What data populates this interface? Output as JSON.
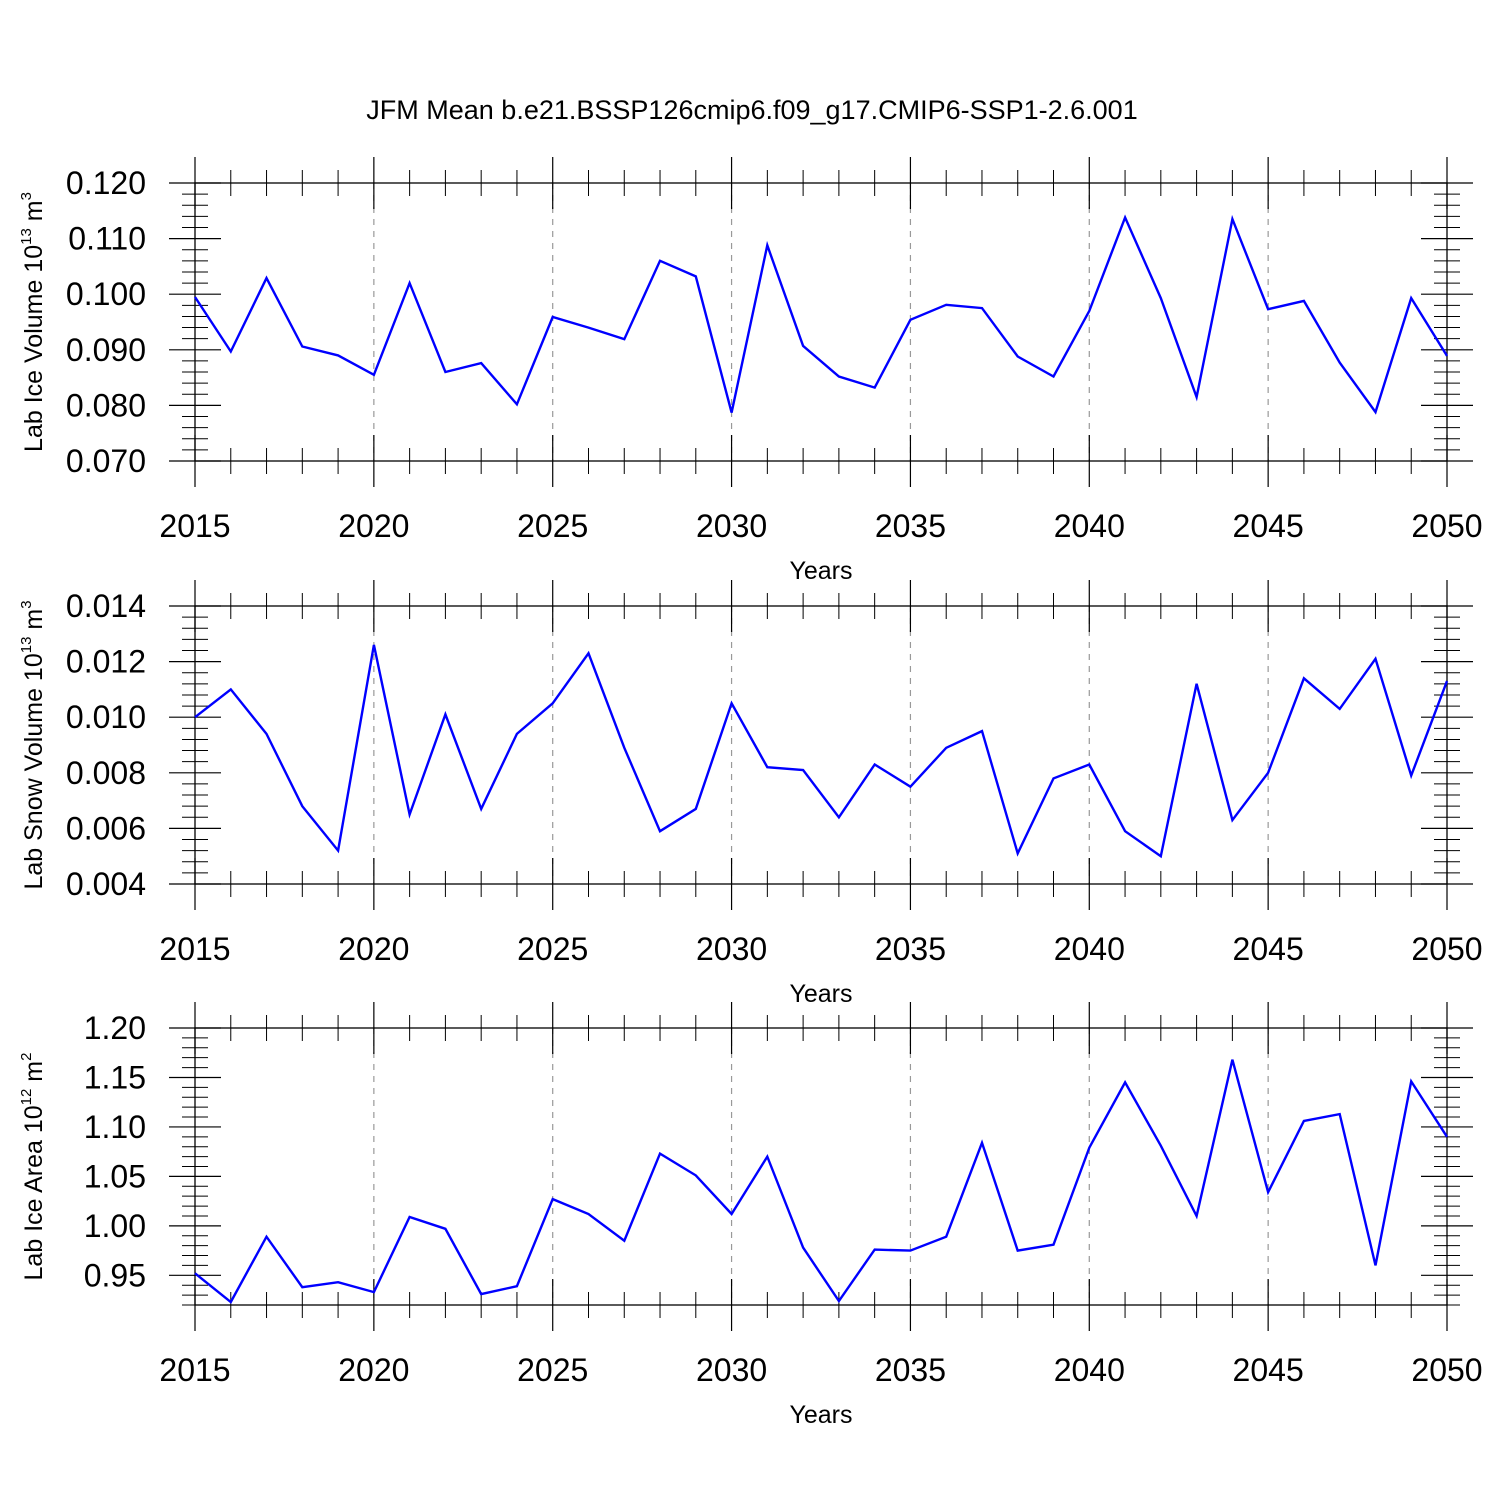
{
  "chart_data": {
    "title": "JFM Mean b.e21.BSSP126cmip6.f09_g17.CMIP6-SSP1-2.6.001",
    "type": "line",
    "line_color": "#0000ff",
    "grid_color": "#999999",
    "x": [
      2015,
      2016,
      2017,
      2018,
      2019,
      2020,
      2021,
      2022,
      2023,
      2024,
      2025,
      2026,
      2027,
      2028,
      2029,
      2030,
      2031,
      2032,
      2033,
      2034,
      2035,
      2036,
      2037,
      2038,
      2039,
      2040,
      2041,
      2042,
      2043,
      2044,
      2045,
      2046,
      2047,
      2048,
      2049,
      2050
    ],
    "xlim": [
      2015,
      2050
    ],
    "xticks": [
      2015,
      2020,
      2025,
      2030,
      2035,
      2040,
      2045,
      2050
    ],
    "xtick_labels": [
      "2015",
      "2020",
      "2025",
      "2030",
      "2035",
      "2040",
      "2045",
      "2050"
    ],
    "panels": [
      {
        "ylabel_text": "Lab Ice Volume 10",
        "ylabel_exp": "13",
        "ylabel_unit": " m",
        "ylabel_unit_exp": "3",
        "xlabel": "Years",
        "ylim": [
          0.07,
          0.12
        ],
        "yticks": [
          0.07,
          0.08,
          0.09,
          0.1,
          0.11,
          0.12
        ],
        "ytick_labels": [
          "0.070",
          "0.080",
          "0.090",
          "0.100",
          "0.110",
          "0.120"
        ],
        "values": [
          0.0995,
          0.0897,
          0.1029,
          0.0906,
          0.089,
          0.0855,
          0.102,
          0.086,
          0.0876,
          0.0802,
          0.0959,
          0.094,
          0.0919,
          0.106,
          0.1032,
          0.0787,
          0.1088,
          0.0907,
          0.0852,
          0.0832,
          0.0954,
          0.0981,
          0.0975,
          0.0888,
          0.0852,
          0.097,
          0.1138,
          0.0993,
          0.0815,
          0.1135,
          0.0973,
          0.0988,
          0.0877,
          0.0788,
          0.0993,
          0.0889
        ]
      },
      {
        "ylabel_text": "Lab Snow Volume 10",
        "ylabel_exp": "13",
        "ylabel_unit": " m",
        "ylabel_unit_exp": "3",
        "xlabel": "Years",
        "ylim": [
          0.004,
          0.014
        ],
        "yticks": [
          0.004,
          0.006,
          0.008,
          0.01,
          0.012,
          0.014
        ],
        "ytick_labels": [
          "0.004",
          "0.006",
          "0.008",
          "0.010",
          "0.012",
          "0.014"
        ],
        "values": [
          0.01,
          0.011,
          0.0094,
          0.0068,
          0.0052,
          0.0126,
          0.0065,
          0.0101,
          0.0067,
          0.0094,
          0.0105,
          0.0123,
          0.0089,
          0.0059,
          0.0067,
          0.0105,
          0.0082,
          0.0081,
          0.0064,
          0.0083,
          0.0075,
          0.0089,
          0.0095,
          0.0051,
          0.0078,
          0.0083,
          0.0059,
          0.005,
          0.0112,
          0.0063,
          0.008,
          0.0114,
          0.0103,
          0.0121,
          0.0079,
          0.0113
        ]
      },
      {
        "ylabel_text": "Lab Ice Area 10",
        "ylabel_exp": "12",
        "ylabel_unit": " m",
        "ylabel_unit_exp": "2",
        "xlabel": "Years",
        "ylim": [
          0.92,
          1.2
        ],
        "yticks": [
          0.95,
          1.0,
          1.05,
          1.1,
          1.15,
          1.2
        ],
        "ytick_labels": [
          "0.95",
          "1.00",
          "1.05",
          "1.10",
          "1.15",
          "1.20"
        ],
        "values": [
          0.952,
          0.923,
          0.989,
          0.938,
          0.943,
          0.933,
          1.009,
          0.997,
          0.931,
          0.939,
          1.027,
          1.012,
          0.985,
          1.073,
          1.051,
          1.012,
          1.07,
          0.978,
          0.924,
          0.976,
          0.975,
          0.989,
          1.084,
          0.975,
          0.981,
          1.079,
          1.145,
          1.081,
          1.01,
          1.168,
          1.034,
          1.106,
          1.113,
          0.96,
          1.146,
          1.09
        ]
      }
    ]
  }
}
